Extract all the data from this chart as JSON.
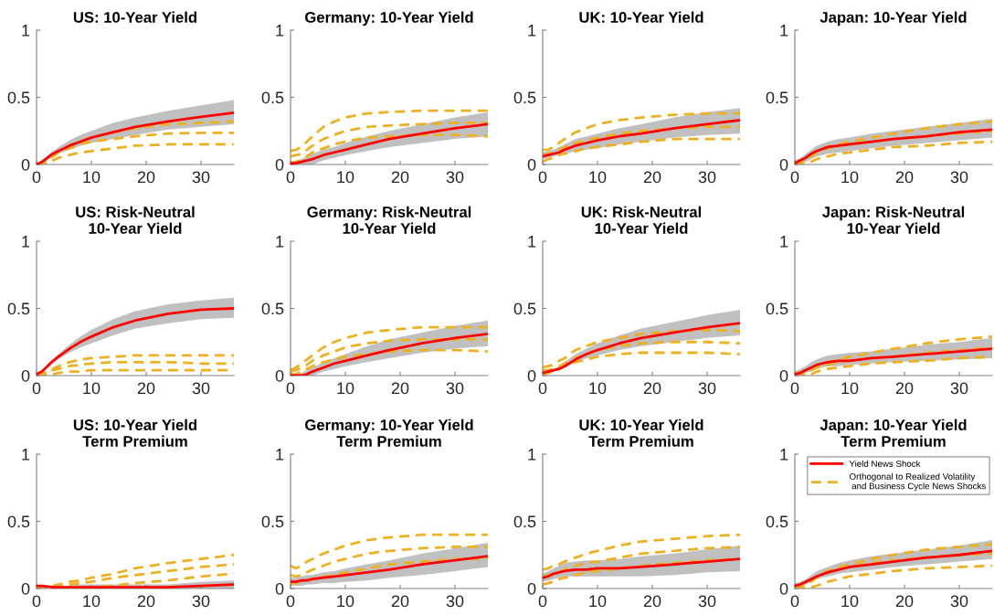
{
  "chart_data": [
    {
      "type": "line",
      "title": "US: 10-Year Yield",
      "x": [
        0,
        1,
        2,
        3,
        4,
        6,
        8,
        10,
        14,
        18,
        24,
        30,
        36
      ],
      "xlim": [
        0,
        36
      ],
      "xticks": [
        0,
        10,
        20,
        30
      ],
      "ylim": [
        0,
        1
      ],
      "yticks": [
        0,
        0.5,
        1
      ],
      "grid": false,
      "series": [
        {
          "color": "#ff0000",
          "line_style": "solid",
          "values": [
            0,
            0.02,
            0.05,
            0.08,
            0.1,
            0.14,
            0.17,
            0.2,
            0.24,
            0.28,
            0.32,
            0.355,
            0.385
          ],
          "lower": [
            0,
            0.01,
            0.03,
            0.06,
            0.08,
            0.11,
            0.14,
            0.16,
            0.19,
            0.22,
            0.26,
            0.28,
            0.3
          ],
          "upper": [
            0,
            0.03,
            0.07,
            0.1,
            0.13,
            0.18,
            0.22,
            0.25,
            0.31,
            0.35,
            0.4,
            0.44,
            0.48
          ]
        },
        {
          "color": "#edb120",
          "line_style": "dashed",
          "values": [
            0,
            0.01,
            0.04,
            0.08,
            0.1,
            0.14,
            0.17,
            0.2,
            0.24,
            0.27,
            0.3,
            0.31,
            0.32
          ]
        },
        {
          "color": "#edb120",
          "line_style": "dashed",
          "values": [
            0,
            0.01,
            0.03,
            0.06,
            0.09,
            0.12,
            0.15,
            0.17,
            0.19,
            0.21,
            0.23,
            0.235,
            0.235
          ]
        },
        {
          "color": "#edb120",
          "line_style": "dashed",
          "values": [
            0,
            0,
            0.01,
            0.03,
            0.05,
            0.07,
            0.09,
            0.1,
            0.12,
            0.14,
            0.15,
            0.15,
            0.15
          ]
        }
      ]
    },
    {
      "type": "line",
      "title": "Germany: 10-Year Yield",
      "x": [
        0,
        1,
        2,
        3,
        4,
        6,
        8,
        10,
        14,
        18,
        24,
        30,
        36
      ],
      "xlim": [
        0,
        36
      ],
      "xticks": [
        0,
        10,
        20,
        30
      ],
      "ylim": [
        0,
        1
      ],
      "yticks": [
        0,
        0.5,
        1
      ],
      "grid": false,
      "series": [
        {
          "color": "#ff0000",
          "line_style": "solid",
          "values": [
            0.01,
            0.01,
            0.02,
            0.03,
            0.04,
            0.07,
            0.09,
            0.11,
            0.15,
            0.19,
            0.23,
            0.27,
            0.3
          ],
          "lower": [
            0,
            0,
            0,
            0,
            0,
            0.03,
            0.05,
            0.07,
            0.1,
            0.13,
            0.16,
            0.19,
            0.21
          ],
          "upper": [
            0.02,
            0.03,
            0.04,
            0.06,
            0.08,
            0.11,
            0.13,
            0.16,
            0.21,
            0.25,
            0.3,
            0.35,
            0.39
          ]
        },
        {
          "color": "#edb120",
          "line_style": "dashed",
          "values": [
            0.1,
            0.11,
            0.13,
            0.17,
            0.21,
            0.28,
            0.32,
            0.35,
            0.38,
            0.39,
            0.4,
            0.4,
            0.4
          ]
        },
        {
          "color": "#edb120",
          "line_style": "dashed",
          "values": [
            0.06,
            0.07,
            0.08,
            0.11,
            0.14,
            0.19,
            0.22,
            0.25,
            0.28,
            0.29,
            0.3,
            0.31,
            0.31
          ]
        },
        {
          "color": "#edb120",
          "line_style": "dashed",
          "values": [
            0.01,
            0.02,
            0.03,
            0.06,
            0.09,
            0.12,
            0.15,
            0.17,
            0.2,
            0.21,
            0.22,
            0.22,
            0.21
          ]
        }
      ]
    },
    {
      "type": "line",
      "title": "UK: 10-Year Yield",
      "x": [
        0,
        1,
        2,
        3,
        4,
        6,
        8,
        10,
        14,
        18,
        24,
        30,
        36
      ],
      "xlim": [
        0,
        36
      ],
      "xticks": [
        0,
        10,
        20,
        30
      ],
      "ylim": [
        0,
        1
      ],
      "yticks": [
        0,
        0.5,
        1
      ],
      "grid": false,
      "series": [
        {
          "color": "#ff0000",
          "line_style": "solid",
          "values": [
            0.06,
            0.07,
            0.08,
            0.09,
            0.11,
            0.14,
            0.16,
            0.18,
            0.21,
            0.23,
            0.27,
            0.3,
            0.33
          ],
          "lower": [
            0.04,
            0.05,
            0.06,
            0.07,
            0.08,
            0.1,
            0.11,
            0.12,
            0.15,
            0.17,
            0.2,
            0.22,
            0.23
          ],
          "upper": [
            0.09,
            0.1,
            0.11,
            0.13,
            0.15,
            0.19,
            0.21,
            0.23,
            0.27,
            0.3,
            0.35,
            0.39,
            0.42
          ]
        },
        {
          "color": "#edb120",
          "line_style": "dashed",
          "values": [
            0.11,
            0.11,
            0.13,
            0.16,
            0.19,
            0.24,
            0.27,
            0.3,
            0.33,
            0.35,
            0.37,
            0.38,
            0.38
          ]
        },
        {
          "color": "#edb120",
          "line_style": "dashed",
          "values": [
            0.07,
            0.08,
            0.09,
            0.11,
            0.13,
            0.16,
            0.18,
            0.2,
            0.23,
            0.25,
            0.27,
            0.28,
            0.28
          ]
        },
        {
          "color": "#edb120",
          "line_style": "dashed",
          "values": [
            0.02,
            0.04,
            0.05,
            0.07,
            0.08,
            0.1,
            0.12,
            0.13,
            0.15,
            0.17,
            0.19,
            0.19,
            0.19
          ]
        }
      ]
    },
    {
      "type": "line",
      "title": "Japan: 10-Year Yield",
      "x": [
        0,
        1,
        2,
        3,
        4,
        6,
        8,
        10,
        14,
        18,
        24,
        30,
        36
      ],
      "xlim": [
        0,
        36
      ],
      "xticks": [
        0,
        10,
        20,
        30
      ],
      "ylim": [
        0,
        1
      ],
      "yticks": [
        0,
        0.5,
        1
      ],
      "grid": false,
      "series": [
        {
          "color": "#ff0000",
          "line_style": "solid",
          "values": [
            0.01,
            0.03,
            0.05,
            0.08,
            0.1,
            0.13,
            0.14,
            0.15,
            0.17,
            0.19,
            0.21,
            0.24,
            0.26
          ],
          "lower": [
            0,
            0,
            0.02,
            0.04,
            0.06,
            0.08,
            0.09,
            0.1,
            0.12,
            0.14,
            0.16,
            0.18,
            0.2
          ],
          "upper": [
            0.03,
            0.05,
            0.08,
            0.11,
            0.14,
            0.17,
            0.19,
            0.2,
            0.23,
            0.25,
            0.28,
            0.31,
            0.34
          ]
        },
        {
          "color": "#edb120",
          "line_style": "dashed",
          "values": [
            0,
            0.01,
            0.04,
            0.08,
            0.1,
            0.13,
            0.15,
            0.17,
            0.2,
            0.23,
            0.27,
            0.3,
            0.32
          ]
        },
        {
          "color": "#edb120",
          "line_style": "dashed",
          "values": [
            0,
            0.01,
            0.03,
            0.06,
            0.09,
            0.12,
            0.14,
            0.15,
            0.17,
            0.19,
            0.21,
            0.23,
            0.25
          ]
        },
        {
          "color": "#edb120",
          "line_style": "dashed",
          "values": [
            0,
            0,
            0,
            0.02,
            0.04,
            0.06,
            0.08,
            0.09,
            0.11,
            0.13,
            0.14,
            0.16,
            0.17
          ]
        }
      ]
    },
    {
      "type": "line",
      "title": "US: Risk-Neutral\n10-Year Yield",
      "x": [
        0,
        1,
        2,
        3,
        4,
        6,
        8,
        10,
        14,
        18,
        24,
        30,
        36
      ],
      "xlim": [
        0,
        36
      ],
      "xticks": [
        0,
        10,
        20,
        30
      ],
      "ylim": [
        0,
        1
      ],
      "yticks": [
        0,
        0.5,
        1
      ],
      "grid": false,
      "series": [
        {
          "color": "#ff0000",
          "line_style": "solid",
          "values": [
            0.01,
            0.03,
            0.07,
            0.11,
            0.14,
            0.2,
            0.25,
            0.29,
            0.36,
            0.41,
            0.46,
            0.49,
            0.5
          ],
          "lower": [
            0.01,
            0.02,
            0.06,
            0.09,
            0.12,
            0.17,
            0.21,
            0.24,
            0.3,
            0.35,
            0.39,
            0.42,
            0.43
          ],
          "upper": [
            0.01,
            0.04,
            0.08,
            0.12,
            0.16,
            0.23,
            0.29,
            0.34,
            0.42,
            0.48,
            0.53,
            0.56,
            0.58
          ]
        },
        {
          "color": "#edb120",
          "line_style": "dashed",
          "values": [
            0,
            0.01,
            0.03,
            0.05,
            0.07,
            0.1,
            0.12,
            0.13,
            0.14,
            0.15,
            0.15,
            0.15,
            0.15
          ]
        },
        {
          "color": "#edb120",
          "line_style": "dashed",
          "values": [
            0,
            0,
            0.02,
            0.04,
            0.05,
            0.07,
            0.08,
            0.09,
            0.1,
            0.1,
            0.1,
            0.09,
            0.09
          ]
        },
        {
          "color": "#edb120",
          "line_style": "dashed",
          "values": [
            0,
            0,
            0,
            0.01,
            0.02,
            0.03,
            0.03,
            0.04,
            0.04,
            0.04,
            0.04,
            0.04,
            0.04
          ]
        }
      ]
    },
    {
      "type": "line",
      "title": "Germany: Risk-Neutral\n10-Year Yield",
      "x": [
        0,
        1,
        2,
        3,
        4,
        6,
        8,
        10,
        14,
        18,
        24,
        30,
        36
      ],
      "xlim": [
        0,
        36
      ],
      "xticks": [
        0,
        10,
        20,
        30
      ],
      "ylim": [
        0,
        1
      ],
      "yticks": [
        0,
        0.5,
        1
      ],
      "grid": false,
      "series": [
        {
          "color": "#ff0000",
          "line_style": "solid",
          "values": [
            0,
            0,
            0,
            0.01,
            0.03,
            0.06,
            0.09,
            0.11,
            0.15,
            0.19,
            0.24,
            0.28,
            0.31
          ],
          "lower": [
            0,
            0,
            0,
            0,
            0,
            0.03,
            0.05,
            0.07,
            0.1,
            0.13,
            0.17,
            0.2,
            0.22
          ],
          "upper": [
            0,
            0,
            0.02,
            0.04,
            0.06,
            0.1,
            0.13,
            0.16,
            0.22,
            0.27,
            0.32,
            0.37,
            0.41
          ]
        },
        {
          "color": "#edb120",
          "line_style": "dashed",
          "values": [
            0.04,
            0.06,
            0.09,
            0.12,
            0.15,
            0.21,
            0.25,
            0.28,
            0.32,
            0.34,
            0.36,
            0.36,
            0.36
          ]
        },
        {
          "color": "#edb120",
          "line_style": "dashed",
          "values": [
            0.03,
            0.04,
            0.06,
            0.08,
            0.11,
            0.15,
            0.18,
            0.21,
            0.24,
            0.26,
            0.27,
            0.27,
            0.27
          ]
        },
        {
          "color": "#edb120",
          "line_style": "dashed",
          "values": [
            0.01,
            0.01,
            0.03,
            0.05,
            0.07,
            0.1,
            0.12,
            0.14,
            0.16,
            0.18,
            0.19,
            0.19,
            0.18
          ]
        }
      ]
    },
    {
      "type": "line",
      "title": "UK: Risk-Neutral\n10-Year Yield",
      "x": [
        0,
        1,
        2,
        3,
        4,
        6,
        8,
        10,
        14,
        18,
        24,
        30,
        36
      ],
      "xlim": [
        0,
        36
      ],
      "xticks": [
        0,
        10,
        20,
        30
      ],
      "ylim": [
        0,
        1
      ],
      "yticks": [
        0,
        0.5,
        1
      ],
      "grid": false,
      "series": [
        {
          "color": "#ff0000",
          "line_style": "solid",
          "values": [
            0.02,
            0.03,
            0.04,
            0.05,
            0.07,
            0.12,
            0.16,
            0.19,
            0.24,
            0.28,
            0.32,
            0.36,
            0.39
          ],
          "lower": [
            0.01,
            0.02,
            0.03,
            0.04,
            0.06,
            0.1,
            0.13,
            0.15,
            0.19,
            0.22,
            0.25,
            0.28,
            0.3
          ],
          "upper": [
            0.03,
            0.04,
            0.05,
            0.07,
            0.1,
            0.16,
            0.2,
            0.24,
            0.3,
            0.35,
            0.4,
            0.45,
            0.49
          ]
        },
        {
          "color": "#edb120",
          "line_style": "dashed",
          "values": [
            0.06,
            0.07,
            0.08,
            0.11,
            0.13,
            0.19,
            0.22,
            0.25,
            0.28,
            0.31,
            0.33,
            0.34,
            0.33
          ]
        },
        {
          "color": "#edb120",
          "line_style": "dashed",
          "values": [
            0.04,
            0.04,
            0.05,
            0.07,
            0.09,
            0.13,
            0.16,
            0.19,
            0.22,
            0.24,
            0.25,
            0.25,
            0.24
          ]
        },
        {
          "color": "#edb120",
          "line_style": "dashed",
          "values": [
            0,
            0.02,
            0.03,
            0.05,
            0.07,
            0.1,
            0.12,
            0.14,
            0.16,
            0.17,
            0.17,
            0.17,
            0.16
          ]
        }
      ]
    },
    {
      "type": "line",
      "title": "Japan: Risk-Neutral\n10-Year Yield",
      "x": [
        0,
        1,
        2,
        3,
        4,
        6,
        8,
        10,
        14,
        18,
        24,
        30,
        36
      ],
      "xlim": [
        0,
        36
      ],
      "xticks": [
        0,
        10,
        20,
        30
      ],
      "ylim": [
        0,
        1
      ],
      "yticks": [
        0,
        0.5,
        1
      ],
      "grid": false,
      "series": [
        {
          "color": "#ff0000",
          "line_style": "solid",
          "values": [
            0.01,
            0.02,
            0.04,
            0.06,
            0.08,
            0.1,
            0.11,
            0.11,
            0.13,
            0.14,
            0.16,
            0.18,
            0.2
          ],
          "lower": [
            0,
            0,
            0.02,
            0.03,
            0.05,
            0.07,
            0.07,
            0.08,
            0.09,
            0.1,
            0.11,
            0.12,
            0.13
          ],
          "upper": [
            0.03,
            0.05,
            0.07,
            0.1,
            0.12,
            0.15,
            0.16,
            0.17,
            0.18,
            0.2,
            0.23,
            0.25,
            0.28
          ]
        },
        {
          "color": "#edb120",
          "line_style": "dashed",
          "values": [
            0.02,
            0.02,
            0.03,
            0.05,
            0.07,
            0.1,
            0.12,
            0.14,
            0.17,
            0.2,
            0.24,
            0.27,
            0.29
          ]
        },
        {
          "color": "#edb120",
          "line_style": "dashed",
          "values": [
            0.01,
            0.01,
            0.02,
            0.04,
            0.06,
            0.08,
            0.1,
            0.11,
            0.13,
            0.14,
            0.17,
            0.19,
            0.21
          ]
        },
        {
          "color": "#edb120",
          "line_style": "dashed",
          "values": [
            0,
            0,
            0,
            0.01,
            0.03,
            0.05,
            0.06,
            0.07,
            0.09,
            0.1,
            0.11,
            0.13,
            0.14
          ]
        }
      ]
    },
    {
      "type": "line",
      "title": "US: 10-Year Yield\nTerm Premium",
      "x": [
        0,
        1,
        2,
        3,
        4,
        6,
        8,
        10,
        14,
        18,
        24,
        30,
        36
      ],
      "xlim": [
        0,
        36
      ],
      "xticks": [
        0,
        10,
        20,
        30
      ],
      "ylim": [
        0,
        1
      ],
      "yticks": [
        0,
        0.5,
        1
      ],
      "grid": false,
      "series": [
        {
          "color": "#ff0000",
          "line_style": "solid",
          "values": [
            0.02,
            0.02,
            0.015,
            0.01,
            0.01,
            0.01,
            0.01,
            0.01,
            0.01,
            0.01,
            0.01,
            0.02,
            0.03
          ],
          "lower": [
            0.01,
            0.01,
            0.01,
            0,
            0,
            0,
            0,
            0,
            0,
            0,
            0,
            0,
            0
          ],
          "upper": [
            0.03,
            0.02,
            0.02,
            0.02,
            0.02,
            0.02,
            0.03,
            0.03,
            0.03,
            0.03,
            0.03,
            0.05,
            0.06
          ]
        },
        {
          "color": "#edb120",
          "line_style": "dashed",
          "values": [
            0,
            0.01,
            0.01,
            0.02,
            0.03,
            0.05,
            0.06,
            0.08,
            0.11,
            0.15,
            0.19,
            0.22,
            0.25
          ]
        },
        {
          "color": "#edb120",
          "line_style": "dashed",
          "values": [
            0,
            0,
            0.01,
            0.01,
            0.02,
            0.03,
            0.04,
            0.05,
            0.08,
            0.1,
            0.13,
            0.16,
            0.18
          ]
        },
        {
          "color": "#edb120",
          "line_style": "dashed",
          "values": [
            0,
            0,
            0,
            0.01,
            0.01,
            0,
            0,
            0.01,
            0.02,
            0.04,
            0.06,
            0.09,
            0.11
          ]
        }
      ]
    },
    {
      "type": "line",
      "title": "Germany: 10-Year Yield\nTerm Premium",
      "x": [
        0,
        1,
        2,
        3,
        4,
        6,
        8,
        10,
        14,
        18,
        24,
        30,
        36
      ],
      "xlim": [
        0,
        36
      ],
      "xticks": [
        0,
        10,
        20,
        30
      ],
      "ylim": [
        0,
        1
      ],
      "yticks": [
        0,
        0.5,
        1
      ],
      "grid": false,
      "series": [
        {
          "color": "#ff0000",
          "line_style": "solid",
          "values": [
            0.05,
            0.05,
            0.06,
            0.06,
            0.07,
            0.08,
            0.09,
            0.1,
            0.12,
            0.14,
            0.18,
            0.21,
            0.24
          ],
          "lower": [
            0.02,
            0.02,
            0.02,
            0.03,
            0.03,
            0.04,
            0.04,
            0.05,
            0.06,
            0.08,
            0.1,
            0.13,
            0.16
          ],
          "upper": [
            0.08,
            0.08,
            0.09,
            0.1,
            0.1,
            0.12,
            0.13,
            0.15,
            0.18,
            0.21,
            0.26,
            0.3,
            0.34
          ]
        },
        {
          "color": "#edb120",
          "line_style": "dashed",
          "values": [
            0.17,
            0.15,
            0.17,
            0.2,
            0.22,
            0.26,
            0.29,
            0.32,
            0.36,
            0.38,
            0.4,
            0.4,
            0.4
          ]
        },
        {
          "color": "#edb120",
          "line_style": "dashed",
          "values": [
            0.1,
            0.09,
            0.1,
            0.12,
            0.14,
            0.17,
            0.2,
            0.22,
            0.26,
            0.28,
            0.3,
            0.31,
            0.31
          ]
        },
        {
          "color": "#edb120",
          "line_style": "dashed",
          "values": [
            0.03,
            0.04,
            0.05,
            0.06,
            0.07,
            0.09,
            0.1,
            0.12,
            0.15,
            0.18,
            0.2,
            0.22,
            0.22
          ]
        }
      ]
    },
    {
      "type": "line",
      "title": "UK: 10-Year Yield\nTerm Premium",
      "x": [
        0,
        1,
        2,
        3,
        4,
        6,
        8,
        10,
        14,
        18,
        24,
        30,
        36
      ],
      "xlim": [
        0,
        36
      ],
      "xticks": [
        0,
        10,
        20,
        30
      ],
      "ylim": [
        0,
        1
      ],
      "yticks": [
        0,
        0.5,
        1
      ],
      "grid": false,
      "series": [
        {
          "color": "#ff0000",
          "line_style": "solid",
          "values": [
            0.08,
            0.09,
            0.11,
            0.12,
            0.13,
            0.14,
            0.14,
            0.15,
            0.15,
            0.16,
            0.18,
            0.2,
            0.22
          ],
          "lower": [
            0.05,
            0.06,
            0.07,
            0.08,
            0.09,
            0.09,
            0.09,
            0.09,
            0.09,
            0.09,
            0.1,
            0.12,
            0.13
          ],
          "upper": [
            0.11,
            0.13,
            0.15,
            0.17,
            0.19,
            0.2,
            0.21,
            0.21,
            0.22,
            0.24,
            0.26,
            0.29,
            0.32
          ]
        },
        {
          "color": "#edb120",
          "line_style": "dashed",
          "values": [
            0.14,
            0.15,
            0.17,
            0.18,
            0.2,
            0.23,
            0.26,
            0.28,
            0.32,
            0.35,
            0.37,
            0.39,
            0.4
          ]
        },
        {
          "color": "#edb120",
          "line_style": "dashed",
          "values": [
            0.09,
            0.1,
            0.11,
            0.12,
            0.14,
            0.17,
            0.19,
            0.2,
            0.23,
            0.26,
            0.28,
            0.3,
            0.31
          ]
        },
        {
          "color": "#edb120",
          "line_style": "dashed",
          "values": [
            0.03,
            0.04,
            0.05,
            0.07,
            0.08,
            0.1,
            0.12,
            0.13,
            0.15,
            0.17,
            0.19,
            0.21,
            0.22
          ]
        }
      ]
    },
    {
      "type": "line",
      "title": "Japan: 10-Year Yield\nTerm Premium",
      "x": [
        0,
        1,
        2,
        3,
        4,
        6,
        8,
        10,
        14,
        18,
        24,
        30,
        36
      ],
      "xlim": [
        0,
        36
      ],
      "xticks": [
        0,
        10,
        20,
        30
      ],
      "ylim": [
        0,
        1
      ],
      "yticks": [
        0,
        0.5,
        1
      ],
      "grid": false,
      "legend": "top right",
      "series": [
        {
          "name": "Yield News Shock",
          "color": "#ff0000",
          "line_style": "solid",
          "values": [
            0.02,
            0.03,
            0.05,
            0.07,
            0.09,
            0.12,
            0.14,
            0.16,
            0.18,
            0.2,
            0.23,
            0.25,
            0.28
          ],
          "lower": [
            0.01,
            0.02,
            0.03,
            0.05,
            0.07,
            0.09,
            0.11,
            0.12,
            0.14,
            0.16,
            0.18,
            0.2,
            0.22
          ],
          "upper": [
            0.04,
            0.05,
            0.07,
            0.1,
            0.13,
            0.16,
            0.19,
            0.21,
            0.24,
            0.26,
            0.29,
            0.32,
            0.36
          ]
        },
        {
          "name": "Orthogonal to Realized Volatility\n and Business Cycle News Shocks",
          "color": "#edb120",
          "line_style": "dashed",
          "values": [
            0,
            0.01,
            0.03,
            0.06,
            0.09,
            0.13,
            0.16,
            0.18,
            0.22,
            0.25,
            0.29,
            0.31,
            0.33
          ]
        },
        {
          "color": "#edb120",
          "line_style": "dashed",
          "values": [
            0,
            0.01,
            0.03,
            0.05,
            0.08,
            0.12,
            0.14,
            0.16,
            0.19,
            0.21,
            0.23,
            0.25,
            0.26
          ]
        },
        {
          "color": "#edb120",
          "line_style": "dashed",
          "values": [
            0,
            0,
            0,
            0.01,
            0.02,
            0.05,
            0.07,
            0.09,
            0.11,
            0.13,
            0.15,
            0.16,
            0.17
          ]
        }
      ]
    }
  ]
}
